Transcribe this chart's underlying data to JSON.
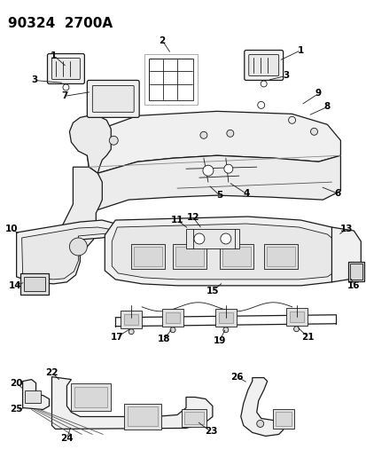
{
  "title": "90324  2700A",
  "bg_color": "#ffffff",
  "line_color": "#1a1a1a",
  "text_color": "#000000",
  "title_fontsize": 11,
  "label_fontsize": 7.5,
  "figsize": [
    4.14,
    5.33
  ],
  "dpi": 100
}
